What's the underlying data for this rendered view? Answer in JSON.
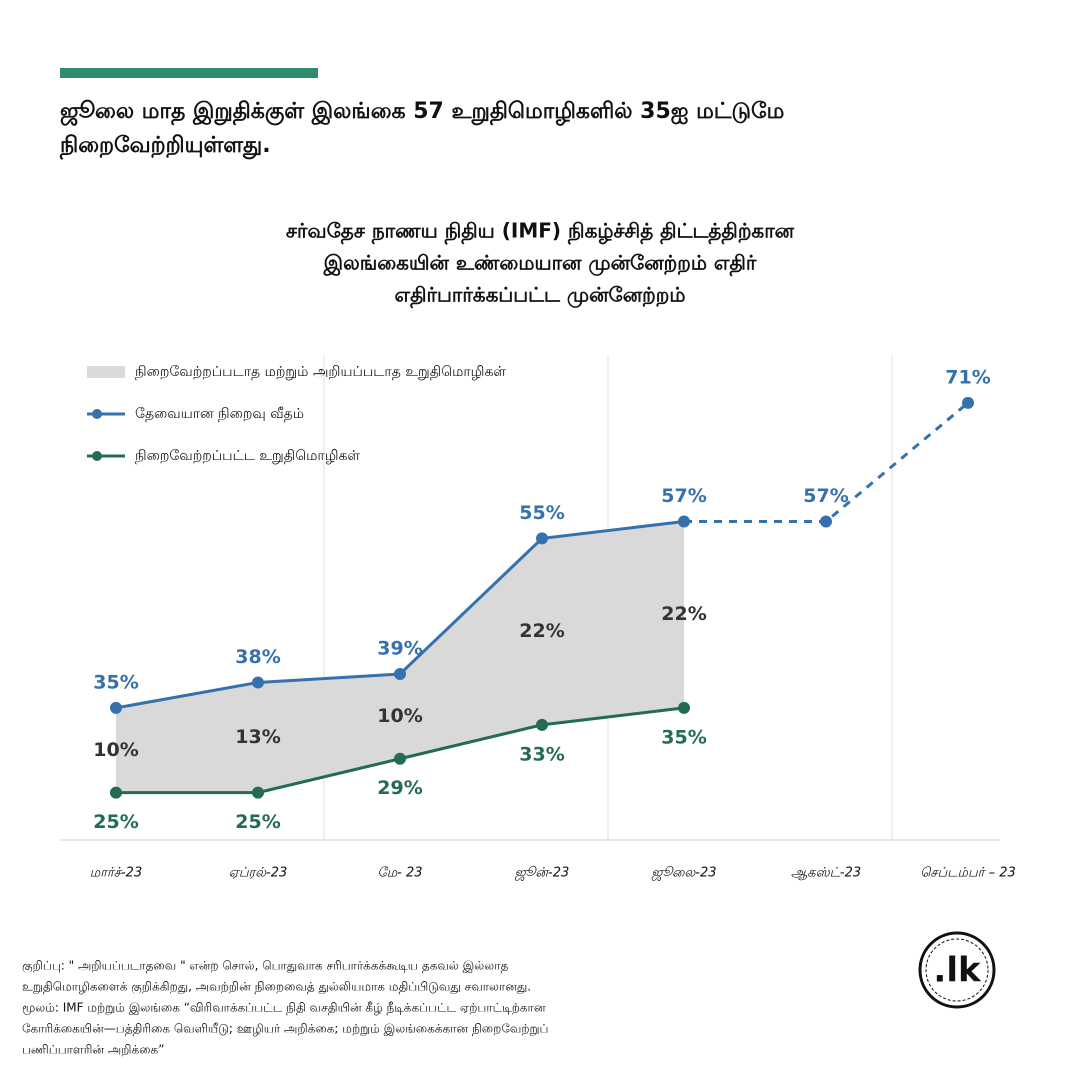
{
  "header": {
    "title_lines": [
      "ஜூலை மாத இறுதிக்குள் இலங்கை 57 உறுதிமொழிகளில் 35ஐ மட்டுமே",
      "நிறைவேற்றியுள்ளது."
    ]
  },
  "chart_data": {
    "type": "line",
    "title_lines": [
      "சர்வதேச நாணய நிதிய (IMF) நிகழ்ச்சித் திட்டத்திற்கான",
      "இலங்கையின் உண்மையான முன்னேற்றம் எதிர்",
      "எதிர்பார்க்கப்பட்ட முன்னேற்றம்"
    ],
    "categories": [
      "மார்ச்-23",
      "ஏப்ரல்-23",
      "மே- 23",
      "ஜூன்-23",
      "ஜூலை-23",
      "ஆகஸ்ட்-23",
      "செப்டம்பர் – 23"
    ],
    "ylim": [
      20,
      77
    ],
    "series": [
      {
        "name": "நிறைவேற்றப்படாத மற்றும் அறியப்படாத உறுதிமொழிகள்",
        "color": "#d9d9d9",
        "kind": "area",
        "stacked_on": 2,
        "values": [
          10,
          13,
          10,
          22,
          22,
          null,
          null
        ],
        "value_labels": [
          "10%",
          "13%",
          "10%",
          "22%",
          "22%",
          null,
          null
        ]
      },
      {
        "name": "தேவையான நிறைவு  வீதம்",
        "color": "#3471ad",
        "kind": "line",
        "dashed_from": 4,
        "values": [
          35,
          38,
          39,
          55,
          57,
          57,
          71
        ],
        "value_labels": [
          "35%",
          "38%",
          "39%",
          "55%",
          "57%",
          "57%",
          "71%"
        ]
      },
      {
        "name": "நிறைவேற்றப்பட்ட உறுதிமொழிகள்",
        "color": "#236b55",
        "kind": "line",
        "values": [
          25,
          25,
          29,
          33,
          35,
          null,
          null
        ],
        "value_labels": [
          "25%",
          "25%",
          "29%",
          "33%",
          "35%",
          null,
          null
        ]
      }
    ]
  },
  "footnote": {
    "lines": [
      "குறிப்பு: \" அறியப்படாதவை \" என்ற சொல், பொதுவாக சரிபார்க்கக்கூடிய தகவல் இல்லாத",
      "உறுதிமொழிகளைக் குறிக்கிறது, அவற்றின் நிறைவைத் துல்லியமாக மதிப்பிடுவது சவாலானது.",
      "மூலம்: IMF மற்றும் இலங்கை “விரிவாக்கப்பட்ட நிதி வசதியின் கீழ் நீடிக்கப்பட்ட ஏற்பாட்டிற்கான",
      "கோரிக்கையின்—பத்திரிகை வெளியீடு; ஊழியர் அறிக்கை; மற்றும் இலங்கைக்கான நிறைவேற்றுப்",
      "பணிப்பாளரின் அறிக்கை”"
    ]
  },
  "logo": {
    "text": ".lk"
  }
}
